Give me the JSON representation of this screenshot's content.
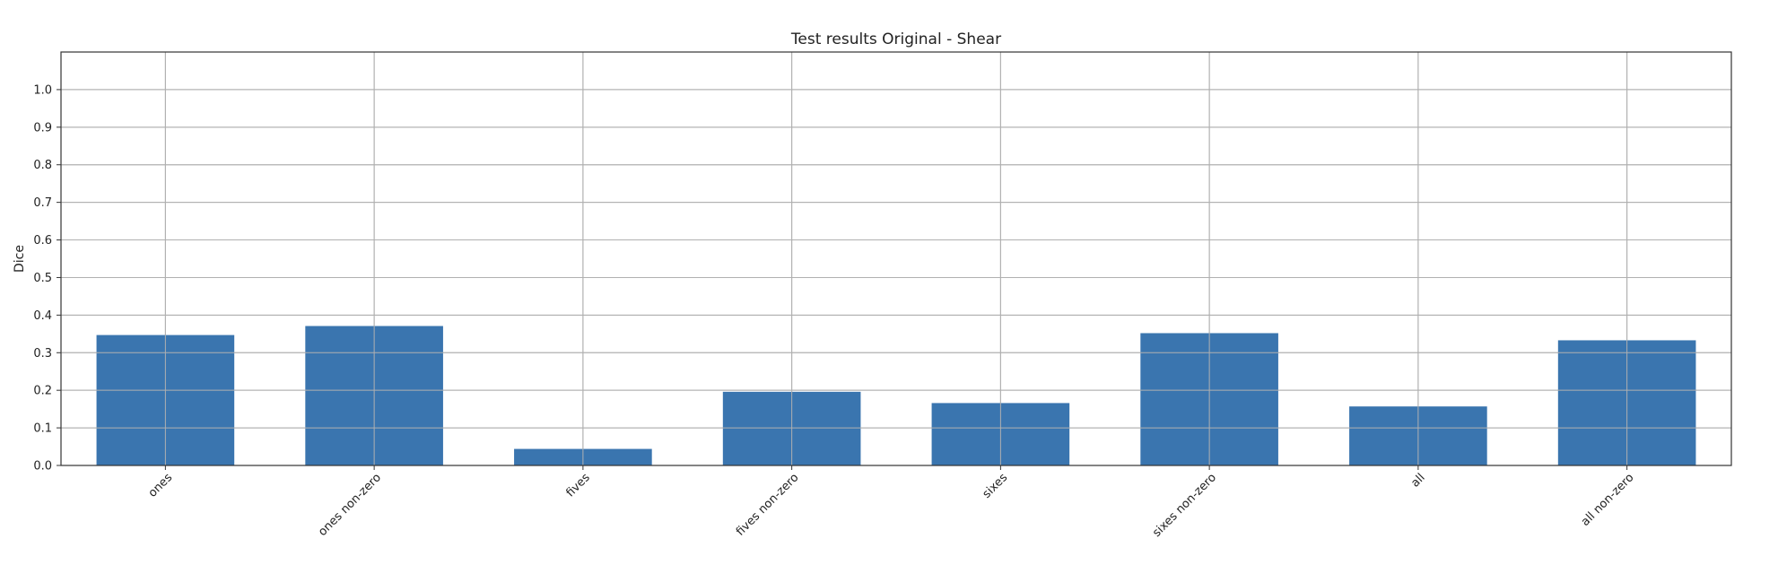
{
  "chart_data": {
    "type": "bar",
    "title": "Test results Original - Shear",
    "xlabel": "",
    "ylabel": "Dice",
    "categories": [
      "ones",
      "ones non-zero",
      "fives",
      "fives non-zero",
      "sixes",
      "sixes non-zero",
      "all",
      "all non-zero"
    ],
    "values": [
      0.347,
      0.371,
      0.044,
      0.196,
      0.166,
      0.352,
      0.157,
      0.333
    ],
    "ylim": [
      0,
      1.1
    ],
    "yticks": [
      0.0,
      0.1,
      0.2,
      0.3,
      0.4,
      0.5,
      0.6,
      0.7,
      0.8,
      0.9,
      1.0
    ],
    "ytick_labels": [
      "0.0",
      "0.1",
      "0.2",
      "0.3",
      "0.4",
      "0.5",
      "0.6",
      "0.7",
      "0.8",
      "0.9",
      "1.0"
    ],
    "grid": true,
    "bar_color": "#3a75af"
  }
}
